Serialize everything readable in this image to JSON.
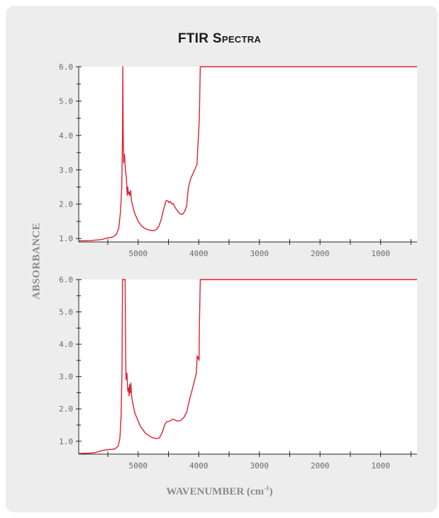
{
  "title_main": "FTIR",
  "title_caps": "Spectra",
  "ylabel": "ABSORBANCE",
  "xlabel_main": "WAVENUMBER (cm",
  "xlabel_sup": "-1",
  "xlabel_end": ")",
  "colors": {
    "panel": "#ededed",
    "series": "#e02030"
  },
  "chart_data": [
    {
      "type": "line",
      "title": "",
      "xlabel": "",
      "ylabel": "",
      "xlim": [
        5980,
        400
      ],
      "ylim": [
        0.9,
        6.0
      ],
      "grid": false,
      "y_ticks": [
        1.0,
        2.0,
        3.0,
        4.0,
        5.0,
        6.0
      ],
      "y_tick_labels": [
        "1.0",
        "2.0",
        "3.0",
        "4.0",
        "5.0",
        "6.0"
      ],
      "x_ticks": [
        5000,
        4000,
        3000,
        2000,
        1000
      ],
      "x_tick_labels": [
        "5000",
        "4000",
        "3000",
        "2000",
        "1000"
      ],
      "series": [
        {
          "x": [
            5980,
            5800,
            5600,
            5500,
            5420,
            5360,
            5320,
            5290,
            5270,
            5258,
            5252,
            5246,
            5240,
            5225,
            5210,
            5195,
            5180,
            5170,
            5160,
            5150,
            5140,
            5125,
            5110,
            5090,
            5060,
            5000,
            4940,
            4880,
            4800,
            4740,
            4700,
            4660,
            4620,
            4580,
            4540,
            4510,
            4490,
            4470,
            4440,
            4420,
            4400,
            4370,
            4340,
            4310,
            4290,
            4260,
            4230,
            4200,
            4170,
            4130,
            4080,
            4030,
            3990,
            3975,
            3960,
            400
          ],
          "y": [
            0.93,
            0.94,
            0.97,
            1.02,
            1.04,
            1.12,
            1.3,
            1.8,
            2.5,
            4.0,
            6.0,
            4.2,
            3.2,
            3.45,
            3.0,
            2.8,
            2.25,
            2.5,
            2.3,
            2.35,
            2.25,
            2.4,
            2.1,
            1.95,
            1.75,
            1.5,
            1.36,
            1.28,
            1.24,
            1.23,
            1.26,
            1.35,
            1.55,
            1.85,
            2.1,
            2.1,
            2.04,
            2.08,
            2.0,
            2.02,
            1.93,
            1.85,
            1.78,
            1.72,
            1.7,
            1.72,
            1.8,
            1.95,
            2.5,
            2.75,
            2.95,
            3.15,
            4.5,
            6.0,
            6.0,
            6.0
          ]
        }
      ]
    },
    {
      "type": "line",
      "title": "",
      "xlabel": "",
      "ylabel": "",
      "xlim": [
        5980,
        400
      ],
      "ylim": [
        0.6,
        6.0
      ],
      "grid": false,
      "y_ticks": [
        1.0,
        2.0,
        3.0,
        4.0,
        5.0,
        6.0
      ],
      "y_tick_labels": [
        "1.0",
        "2.0",
        "3.0",
        "4.0",
        "5.0",
        "6.0"
      ],
      "x_ticks": [
        5000,
        4000,
        3000,
        2000,
        1000
      ],
      "x_tick_labels": [
        "5000",
        "4000",
        "3000",
        "2000",
        "1000"
      ],
      "series": [
        {
          "x": [
            5980,
            5800,
            5700,
            5600,
            5500,
            5420,
            5380,
            5330,
            5300,
            5280,
            5265,
            5258,
            5250,
            5215,
            5205,
            5200,
            5185,
            5170,
            5160,
            5150,
            5140,
            5130,
            5120,
            5110,
            5100,
            5080,
            5050,
            4960,
            4880,
            4780,
            4700,
            4650,
            4600,
            4560,
            4530,
            4480,
            4430,
            4400,
            4350,
            4300,
            4250,
            4200,
            4150,
            4100,
            4060,
            4040,
            4025,
            4015,
            4005,
            3995,
            3990,
            3975,
            3960,
            400
          ],
          "y": [
            0.62,
            0.63,
            0.65,
            0.71,
            0.74,
            0.75,
            0.77,
            0.85,
            1.1,
            1.8,
            3.3,
            6.0,
            6.0,
            6.0,
            3.5,
            2.9,
            3.1,
            2.55,
            2.65,
            2.4,
            2.75,
            2.5,
            2.8,
            2.45,
            2.3,
            2.1,
            1.85,
            1.45,
            1.25,
            1.12,
            1.08,
            1.1,
            1.28,
            1.52,
            1.6,
            1.62,
            1.68,
            1.66,
            1.62,
            1.64,
            1.72,
            1.9,
            2.3,
            2.65,
            2.95,
            3.1,
            3.65,
            3.55,
            3.6,
            3.5,
            4.5,
            6.0,
            6.0,
            6.0
          ]
        }
      ]
    }
  ]
}
